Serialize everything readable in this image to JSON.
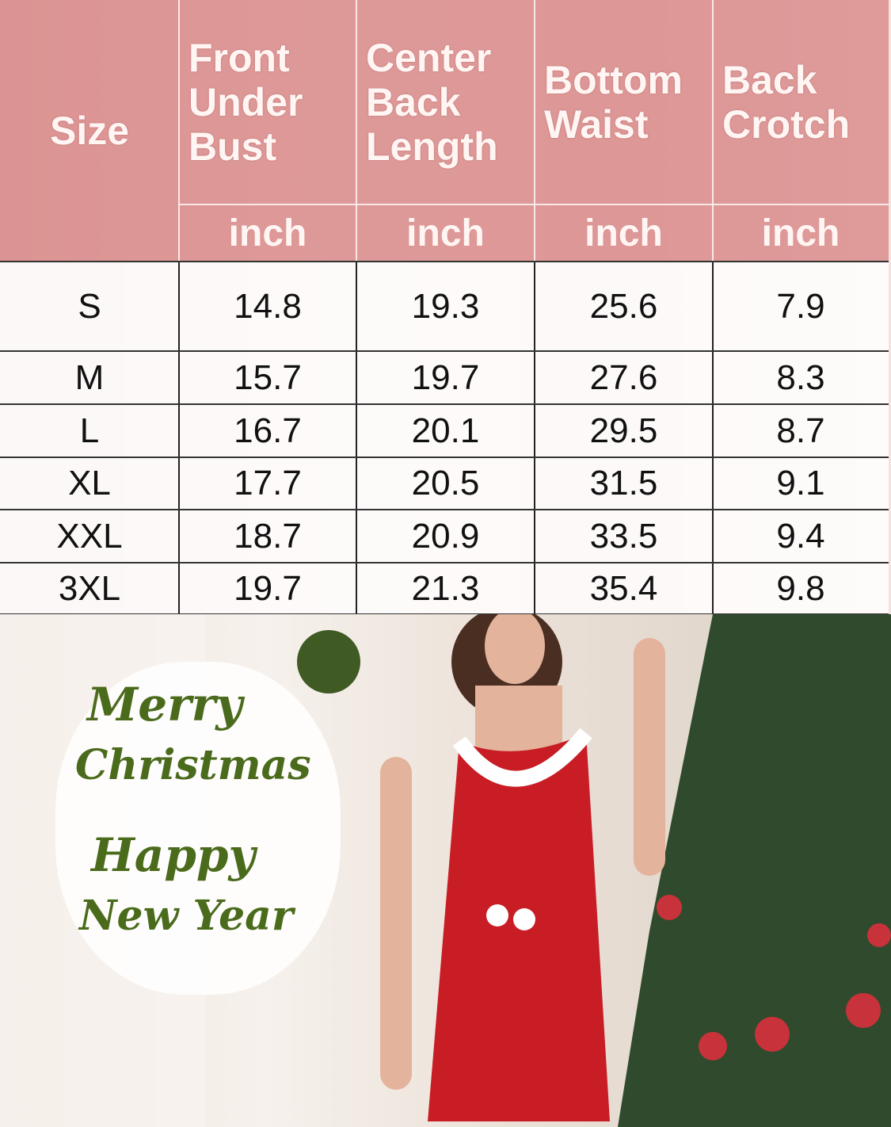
{
  "table": {
    "headers": [
      "Size",
      "Front Under Bust",
      "Center Back Length",
      "Bottom Waist",
      "Back Crotch"
    ],
    "units": [
      "inch",
      "inch",
      "inch",
      "inch"
    ],
    "rows": [
      [
        "S",
        "14.8",
        "19.3",
        "25.6",
        "7.9"
      ],
      [
        "M",
        "15.7",
        "19.7",
        "27.6",
        "8.3"
      ],
      [
        "L",
        "16.7",
        "20.1",
        "29.5",
        "8.7"
      ],
      [
        "XL",
        "17.7",
        "20.5",
        "31.5",
        "9.1"
      ],
      [
        "XXL",
        "18.7",
        "20.9",
        "33.5",
        "9.4"
      ],
      [
        "3XL",
        "19.7",
        "21.3",
        "35.4",
        "9.8"
      ]
    ],
    "header_color": "#d68080"
  },
  "greeting": {
    "line1": "Merry",
    "line2": "Christmas",
    "line3": "Happy",
    "line4": "New Year",
    "color": "#4b6b1c"
  }
}
